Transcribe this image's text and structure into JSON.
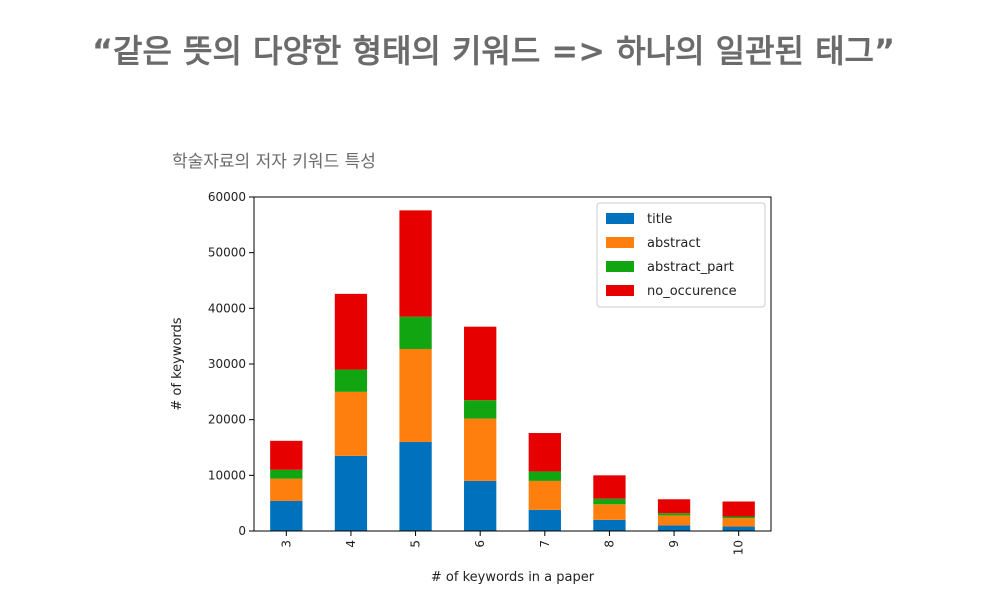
{
  "slide": {
    "title": "“같은 뜻의 다양한 형태의 키워드 => 하나의 일관된 태그”"
  },
  "chart_data": {
    "type": "bar",
    "stacked": true,
    "title": "학술자료의 저자 키워드 특성",
    "xlabel": "# of keywords in a paper",
    "ylabel": "# of keywords",
    "categories": [
      "3",
      "4",
      "5",
      "6",
      "7",
      "8",
      "9",
      "10"
    ],
    "ylim": [
      0,
      60000
    ],
    "yticks": [
      0,
      10000,
      20000,
      30000,
      40000,
      50000,
      60000
    ],
    "legend_position": "top-right",
    "grid": false,
    "series": [
      {
        "name": "title",
        "color": "#0072bd",
        "values": [
          5400,
          13500,
          16000,
          9000,
          3800,
          2000,
          1000,
          800
        ]
      },
      {
        "name": "abstract",
        "color": "#ff7f0e",
        "values": [
          4000,
          11500,
          16700,
          11200,
          5200,
          2800,
          1800,
          1500
        ]
      },
      {
        "name": "abstract_part",
        "color": "#11a511",
        "values": [
          1600,
          4000,
          5800,
          3300,
          1700,
          1000,
          400,
          300
        ]
      },
      {
        "name": "no_occurence",
        "color": "#e60000",
        "values": [
          5200,
          13600,
          19100,
          13200,
          6900,
          4200,
          2500,
          2700
        ]
      }
    ]
  }
}
